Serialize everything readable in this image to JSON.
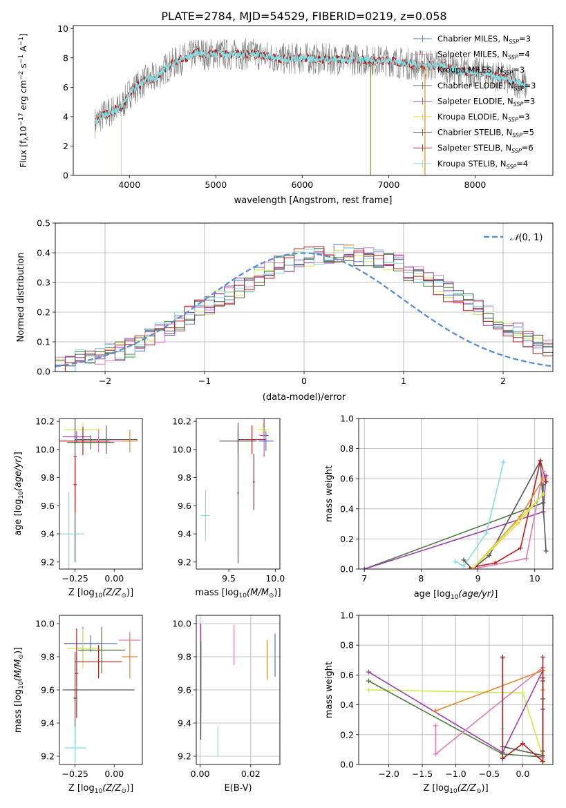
{
  "title": "PLATE=2784, MJD=54529, FIBERID=0219, z=0.058",
  "colors": {
    "chabrier_miles": "#4e79c4",
    "salpeter_miles": "#e079b6",
    "kroupa_miles": "#7b8f3a",
    "chabrier_elodie": "#4f7a3f",
    "salpeter_elodie": "#9a3fb0",
    "kroupa_elodie": "#f1d24a",
    "chabrier_stelib": "#555555",
    "salpeter_stelib": "#b71c1c",
    "kroupa_stelib": "#86dcdf",
    "gauss": "#5b8fd6",
    "extra_orange": "#e8862a",
    "extra_yellowgreen": "#c9ec4b"
  },
  "chart_data": [
    {
      "id": "spectrum",
      "type": "line",
      "xlabel": "wavelength [Angstrom, rest frame]",
      "ylabel": "Flux [f_λ10^-17 erg cm^-2 s^-1 A^-1]",
      "xlim": [
        3350,
        8900
      ],
      "ylim": [
        0,
        10.2
      ],
      "xticks": [
        "4000",
        "5000",
        "6000",
        "7000",
        "8000"
      ],
      "xtick_values": [
        4000,
        5000,
        6000,
        7000,
        8000
      ],
      "yticks": [
        "0",
        "2",
        "4",
        "6",
        "8",
        "10"
      ],
      "ytick_values": [
        0,
        2,
        4,
        6,
        8,
        10
      ],
      "legend_placement": "upper right",
      "legend": [
        {
          "label": "Chabrier MILES, N",
          "sub": "SSP",
          "suffix": "=3",
          "color": "#4e79c4"
        },
        {
          "label": "Salpeter MILES, N",
          "sub": "SSP",
          "suffix": "=4",
          "color": "#e079b6"
        },
        {
          "label": "Kroupa MILES, N",
          "sub": "SSP",
          "suffix": "=3",
          "color": "#7b8f3a"
        },
        {
          "label": "Chabrier ELODIE, N",
          "sub": "SSP",
          "suffix": "=3",
          "color": "#4f7a3f"
        },
        {
          "label": "Salpeter ELODIE, N",
          "sub": "SSP",
          "suffix": "=3",
          "color": "#9a3fb0"
        },
        {
          "label": "Kroupa ELODIE, N",
          "sub": "SSP",
          "suffix": "=3",
          "color": "#f1d24a"
        },
        {
          "label": "Chabrier STELIB, N",
          "sub": "SSP",
          "suffix": "=5",
          "color": "#555555"
        },
        {
          "label": "Salpeter STELIB, N",
          "sub": "SSP",
          "suffix": "=6",
          "color": "#b71c1c"
        },
        {
          "label": "Kroupa STELIB, N",
          "sub": "SSP",
          "suffix": "=4",
          "color": "#86dcdf"
        }
      ],
      "continuum": {
        "x": [
          3600,
          3700,
          3800,
          3900,
          4000,
          4100,
          4200,
          4300,
          4400,
          4500,
          4600,
          4700,
          4800,
          4900,
          5000,
          5200,
          5400,
          5600,
          5800,
          6000,
          6200,
          6400,
          6600,
          6800,
          7000,
          7200,
          7400,
          7600,
          7800,
          8000,
          8200,
          8400,
          8600
        ],
        "y": [
          3.6,
          4.1,
          4.4,
          4.6,
          5.6,
          6.1,
          6.5,
          6.6,
          7.2,
          7.6,
          7.9,
          8.1,
          8.4,
          8.2,
          8.3,
          8.2,
          8.3,
          8.1,
          7.9,
          8.0,
          7.9,
          7.9,
          7.9,
          7.8,
          7.8,
          7.6,
          7.5,
          7.5,
          7.1,
          7.0,
          6.8,
          6.5,
          6.1
        ]
      }
    },
    {
      "id": "residuals",
      "type": "histogram",
      "xlabel": "(data-model)/error",
      "ylabel": "Normed distribution",
      "xlim": [
        -2.5,
        2.5
      ],
      "ylim": [
        0,
        0.5
      ],
      "xticks": [
        "−2",
        "−1",
        "0",
        "1",
        "2"
      ],
      "xtick_values": [
        -2,
        -1,
        0,
        1,
        2
      ],
      "yticks": [
        "0.0",
        "0.1",
        "0.2",
        "0.3",
        "0.4",
        "0.5"
      ],
      "ytick_values": [
        0,
        0.1,
        0.2,
        0.3,
        0.4,
        0.5
      ],
      "legend_label": "N(0,1)",
      "bin_edges_start": -2.5,
      "bin_width": 0.1,
      "base_counts": [
        0.03,
        0.03,
        0.04,
        0.05,
        0.05,
        0.06,
        0.07,
        0.08,
        0.1,
        0.11,
        0.13,
        0.15,
        0.17,
        0.19,
        0.21,
        0.22,
        0.24,
        0.26,
        0.28,
        0.3,
        0.32,
        0.34,
        0.36,
        0.37,
        0.38,
        0.39,
        0.39,
        0.39,
        0.4,
        0.4,
        0.39,
        0.39,
        0.38,
        0.37,
        0.36,
        0.34,
        0.33,
        0.31,
        0.29,
        0.27,
        0.25,
        0.23,
        0.21,
        0.19,
        0.17,
        0.15,
        0.13,
        0.11,
        0.09,
        0.08
      ]
    },
    {
      "id": "age-vs-Z",
      "type": "scatter",
      "xlabel_prefix": "Z [log",
      "xlabel_suffix": "(Z/Z",
      "xlabel_end": ")]",
      "ylabel": "age  [log10(age/yr)]",
      "xlim": [
        -0.35,
        0.18
      ],
      "ylim": [
        9.15,
        10.22
      ],
      "xticks": [
        "−0.25",
        "0.00"
      ],
      "xtick_values": [
        -0.25,
        0.0
      ],
      "yticks": [
        "9.2",
        "9.4",
        "9.6",
        "9.8",
        "10.0",
        "10.2"
      ],
      "ytick_values": [
        9.2,
        9.4,
        9.6,
        9.8,
        10.0,
        10.2
      ],
      "points": [
        {
          "x": -0.2,
          "y": 10.14,
          "xerr": 0.12,
          "yerr": 0.05,
          "color": "#c9ec4b"
        },
        {
          "x": -0.24,
          "y": 10.09,
          "xerr": 0.09,
          "yerr": 0.04,
          "color": "#9a3fb0"
        },
        {
          "x": -0.05,
          "y": 10.07,
          "xerr": 0.2,
          "yerr": 0.1,
          "color": "#555555"
        },
        {
          "x": -0.1,
          "y": 10.06,
          "xerr": 0.2,
          "yerr": 0.08,
          "color": "#e079b6"
        },
        {
          "x": -0.2,
          "y": 10.06,
          "xerr": 0.17,
          "yerr": 0.1,
          "color": "#b71c1c"
        },
        {
          "x": -0.15,
          "y": 10.05,
          "xerr": 0.15,
          "yerr": 0.05,
          "color": "#4f7a3f"
        },
        {
          "x": 0.1,
          "y": 10.06,
          "xerr": 0.05,
          "yerr": 0.08,
          "color": "#e8862a"
        },
        {
          "x": -0.25,
          "y": 9.95,
          "xerr": 0.01,
          "yerr": 0.75,
          "color": "#555555"
        },
        {
          "x": -0.25,
          "y": 9.75,
          "xerr": 0.01,
          "yerr": 0.2,
          "color": "#b71c1c"
        },
        {
          "x": -0.29,
          "y": 9.4,
          "xerr": 0.1,
          "yerr": 0.3,
          "color": "#86dcdf"
        }
      ]
    },
    {
      "id": "age-vs-mass",
      "type": "scatter",
      "xlabel_prefix": "mass [log",
      "xlabel_suffix": "(M/M",
      "xlabel_end": ")]",
      "xlim": [
        9.15,
        10.05
      ],
      "ylim": [
        9.15,
        10.22
      ],
      "xticks": [
        "9.5",
        "10.0"
      ],
      "xtick_values": [
        9.5,
        10.0
      ],
      "yticks": [
        "9.2",
        "9.4",
        "9.6",
        "9.8",
        "10.0",
        "10.2"
      ],
      "ytick_values": [
        9.2,
        9.4,
        9.6,
        9.8,
        10.0,
        10.2
      ],
      "points": [
        {
          "x": 9.87,
          "y": 10.14,
          "xerr": 0.06,
          "yerr": 0.05,
          "color": "#c9ec4b"
        },
        {
          "x": 9.88,
          "y": 10.1,
          "xerr": 0.05,
          "yerr": 0.15,
          "color": "#9a3fb0"
        },
        {
          "x": 9.88,
          "y": 10.06,
          "xerr": 0.05,
          "yerr": 0.1,
          "color": "#e079b6"
        },
        {
          "x": 9.75,
          "y": 10.07,
          "xerr": 0.15,
          "yerr": 0.1,
          "color": "#b71c1c"
        },
        {
          "x": 9.6,
          "y": 10.06,
          "xerr": 0.2,
          "yerr": 0.09,
          "color": "#555555"
        },
        {
          "x": 9.9,
          "y": 10.06,
          "xerr": 0.08,
          "yerr": 0.07,
          "color": "#4e79c4"
        },
        {
          "x": 9.6,
          "y": 9.69,
          "xerr": 0.01,
          "yerr": 0.5,
          "color": "#555555"
        },
        {
          "x": 9.77,
          "y": 9.77,
          "xerr": 0.01,
          "yerr": 0.2,
          "color": "#b71c1c"
        },
        {
          "x": 9.25,
          "y": 9.53,
          "xerr": 0.05,
          "yerr": 0.18,
          "color": "#86dcdf"
        }
      ]
    },
    {
      "id": "mass-weight-vs-age",
      "type": "line",
      "xlabel": "age  [log10(age/yr)]",
      "ylabel": "mass weight",
      "xlim": [
        6.9,
        10.32
      ],
      "ylim": [
        0,
        1.0
      ],
      "xticks": [
        "7",
        "8",
        "9",
        "10"
      ],
      "xtick_values": [
        7,
        8,
        9,
        10
      ],
      "yticks": [
        "0.0",
        "0.2",
        "0.4",
        "0.6",
        "0.8",
        "1.0"
      ],
      "ytick_values": [
        0,
        0.2,
        0.4,
        0.6,
        0.8,
        1.0
      ],
      "series": [
        {
          "color": "#4f7a3f",
          "x": [
            7.0,
            10.15,
            10.15
          ],
          "y": [
            0.0,
            0.44,
            0.56
          ]
        },
        {
          "color": "#9a3fb0",
          "x": [
            7.0,
            10.15,
            10.2
          ],
          "y": [
            0.0,
            0.38,
            0.62
          ]
        },
        {
          "color": "#86dcdf",
          "x": [
            8.6,
            8.75,
            9.15,
            9.45
          ],
          "y": [
            0.05,
            0.02,
            0.24,
            0.71
          ]
        },
        {
          "color": "#555555",
          "x": [
            8.75,
            8.9,
            9.2,
            10.1,
            10.2
          ],
          "y": [
            0.06,
            0.0,
            0.09,
            0.72,
            0.12
          ]
        },
        {
          "color": "#b71c1c",
          "x": [
            8.85,
            9.0,
            9.3,
            9.75,
            10.1,
            10.2
          ],
          "y": [
            0.0,
            0.02,
            0.04,
            0.14,
            0.72,
            0.58
          ]
        },
        {
          "color": "#e079b6",
          "x": [
            8.9,
            9.85,
            10.15
          ],
          "y": [
            0.0,
            0.07,
            0.65
          ]
        },
        {
          "color": "#e8862a",
          "x": [
            8.9,
            9.75,
            10.15
          ],
          "y": [
            0.0,
            0.35,
            0.6
          ]
        },
        {
          "color": "#f1d24a",
          "x": [
            8.9,
            9.7,
            10.15
          ],
          "y": [
            0.0,
            0.3,
            0.5
          ]
        },
        {
          "color": "#c9ec4b",
          "x": [
            8.9,
            10.15
          ],
          "y": [
            0.0,
            0.5
          ]
        }
      ]
    },
    {
      "id": "mass-vs-Z",
      "type": "scatter",
      "xlabel_prefix": "Z [log",
      "xlabel_suffix": "(Z/Z",
      "xlabel_end": ")]",
      "ylabel": "mass [log10(M/M)]",
      "xlim": [
        -0.35,
        0.18
      ],
      "ylim": [
        9.15,
        10.05
      ],
      "xticks": [
        "−0.25",
        "0.00"
      ],
      "xtick_values": [
        -0.25,
        0.0
      ],
      "yticks": [
        "9.2",
        "9.4",
        "9.6",
        "9.8",
        "10.0"
      ],
      "ytick_values": [
        9.2,
        9.4,
        9.6,
        9.8,
        10.0
      ],
      "points": [
        {
          "x": -0.2,
          "y": 9.88,
          "xerr": 0.12,
          "yerr": 0.1,
          "color": "#9a3fb0"
        },
        {
          "x": -0.15,
          "y": 9.88,
          "xerr": 0.17,
          "yerr": 0.05,
          "color": "#4e79c4"
        },
        {
          "x": -0.2,
          "y": 9.85,
          "xerr": 0.1,
          "yerr": 0.12,
          "color": "#c9ec4b"
        },
        {
          "x": 0.1,
          "y": 9.9,
          "xerr": 0.07,
          "yerr": 0.05,
          "color": "#e079b6"
        },
        {
          "x": -0.08,
          "y": 9.84,
          "xerr": 0.15,
          "yerr": 0.14,
          "color": "#4f7a3f"
        },
        {
          "x": -0.1,
          "y": 9.77,
          "xerr": 0.15,
          "yerr": 0.1,
          "color": "#b71c1c"
        },
        {
          "x": 0.1,
          "y": 9.8,
          "xerr": 0.05,
          "yerr": 0.13,
          "color": "#e8862a"
        },
        {
          "x": -0.1,
          "y": 9.6,
          "xerr": 0.23,
          "yerr": 0.0,
          "color": "#555555"
        },
        {
          "x": -0.24,
          "y": 9.7,
          "xerr": 0.01,
          "yerr": 0.27,
          "color": "#b71c1c"
        },
        {
          "x": -0.25,
          "y": 9.55,
          "xerr": 0.01,
          "yerr": 0.28,
          "color": "#555555"
        },
        {
          "x": -0.25,
          "y": 9.25,
          "xerr": 0.07,
          "yerr": 0.13,
          "color": "#86dcdf"
        }
      ]
    },
    {
      "id": "mass-vs-EBV",
      "type": "scatter",
      "xlabel": "E(B-V)",
      "xlim": [
        -0.0015,
        0.0315
      ],
      "ylim": [
        9.15,
        10.05
      ],
      "xticks": [
        "0.00",
        "0.02"
      ],
      "xtick_values": [
        0.0,
        0.02
      ],
      "yticks": [
        "9.2",
        "9.4",
        "9.6",
        "9.8",
        "10.0"
      ],
      "ytick_values": [
        9.2,
        9.4,
        9.6,
        9.8,
        10.0
      ],
      "points": [
        {
          "x": 0.0003,
          "y": 9.92,
          "xerr": 0,
          "yerr": 0.08,
          "color": "#9a3fb0"
        },
        {
          "x": 0.0003,
          "y": 9.8,
          "xerr": 0,
          "yerr": 0.1,
          "color": "#c9ec4b"
        },
        {
          "x": 0.0003,
          "y": 9.66,
          "xerr": 0,
          "yerr": 0.22,
          "color": "#b71c1c"
        },
        {
          "x": 0.0003,
          "y": 9.6,
          "xerr": 0,
          "yerr": 0.3,
          "color": "#555555"
        },
        {
          "x": 0.0134,
          "y": 9.87,
          "xerr": 0,
          "yerr": 0.12,
          "color": "#e079b6"
        },
        {
          "x": 0.0265,
          "y": 9.78,
          "xerr": 0,
          "yerr": 0.12,
          "color": "#e8862a"
        },
        {
          "x": 0.0296,
          "y": 9.81,
          "xerr": 0,
          "yerr": 0.13,
          "color": "#4e79c4"
        },
        {
          "x": 0.007,
          "y": 9.29,
          "xerr": 0,
          "yerr": 0.09,
          "color": "#86dcdf"
        }
      ]
    },
    {
      "id": "mass-weight-vs-Z",
      "type": "line",
      "xlabel_prefix": "Z [log",
      "xlabel_suffix": "(Z/Z",
      "xlabel_end": ")]",
      "ylabel": "mass weight",
      "xlim": [
        -2.45,
        0.45
      ],
      "ylim": [
        0,
        1.0
      ],
      "xticks": [
        "−2.0",
        "−1.5",
        "−1.0",
        "−0.5",
        "0.0"
      ],
      "xtick_values": [
        -2.0,
        -1.5,
        -1.0,
        -0.5,
        0.0
      ],
      "yticks": [
        "0.0",
        "0.2",
        "0.4",
        "0.6",
        "0.8",
        "1.0"
      ],
      "ytick_values": [
        0,
        0.2,
        0.4,
        0.6,
        0.8,
        1.0
      ],
      "series": [
        {
          "color": "#c9ec4b",
          "x": [
            -2.3,
            0.0,
            0.3,
            0.3
          ],
          "y": [
            0.5,
            0.48,
            0.05,
            0.0
          ]
        },
        {
          "color": "#9a3fb0",
          "x": [
            -2.3,
            -0.3,
            0.3,
            0.3
          ],
          "y": [
            0.62,
            0.08,
            0.63,
            0.37
          ]
        },
        {
          "color": "#4f7a3f",
          "x": [
            -2.3,
            -0.3,
            0.3,
            0.3
          ],
          "y": [
            0.56,
            0.07,
            0.05,
            0.44
          ]
        },
        {
          "color": "#e079b6",
          "x": [
            -1.3,
            -1.3,
            0.3,
            0.3
          ],
          "y": [
            0.26,
            0.07,
            0.65,
            0.05
          ]
        },
        {
          "color": "#e8862a",
          "x": [
            -1.3,
            0.3,
            0.3,
            0.3
          ],
          "y": [
            0.36,
            0.63,
            0.02,
            0.5
          ]
        },
        {
          "color": "#86dcdf",
          "x": [
            -0.3,
            -0.3,
            -0.3,
            -0.3
          ],
          "y": [
            0.71,
            0.24,
            0.0,
            0.05
          ]
        },
        {
          "color": "#555555",
          "x": [
            -0.3,
            -0.3,
            0.3,
            0.3,
            0.3
          ],
          "y": [
            0.72,
            0.12,
            0.06,
            0.56,
            0.09
          ]
        },
        {
          "color": "#b71c1c",
          "x": [
            -0.3,
            -0.3,
            0.0,
            0.3,
            0.3,
            0.3
          ],
          "y": [
            0.72,
            0.04,
            0.14,
            0.02,
            0.58,
            0.72
          ]
        }
      ]
    }
  ]
}
